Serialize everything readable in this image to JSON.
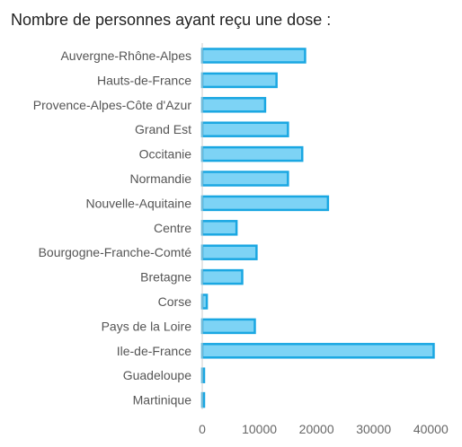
{
  "chart_data": {
    "type": "bar",
    "orientation": "horizontal",
    "title": "Nombre de personnes ayant reçu une dose :",
    "xlabel": "",
    "ylabel": "",
    "xlim": [
      0,
      42000
    ],
    "x_ticks": [
      0,
      10000,
      20000,
      30000,
      40000
    ],
    "x_tick_labels": [
      "0",
      "10000",
      "20000",
      "30000",
      "40000"
    ],
    "grid": false,
    "legend": "none",
    "categories": [
      "Auvergne-Rhône-Alpes",
      "Hauts-de-France",
      "Provence-Alpes-Côte d'Azur",
      "Grand Est",
      "Occitanie",
      "Normandie",
      "Nouvelle-Aquitaine",
      "Centre",
      "Bourgogne-Franche-Comté",
      "Bretagne",
      "Corse",
      "Pays de la Loire",
      "Ile-de-France",
      "Guadeloupe",
      "Martinique"
    ],
    "values": [
      18000,
      13000,
      11000,
      15000,
      17500,
      15000,
      22000,
      6000,
      9500,
      7000,
      800,
      9200,
      40500,
      100,
      100
    ],
    "colors": {
      "bar_fill": "#7dd3f5",
      "bar_stroke": "#1aa7e2",
      "axis": "#cccccc"
    }
  }
}
